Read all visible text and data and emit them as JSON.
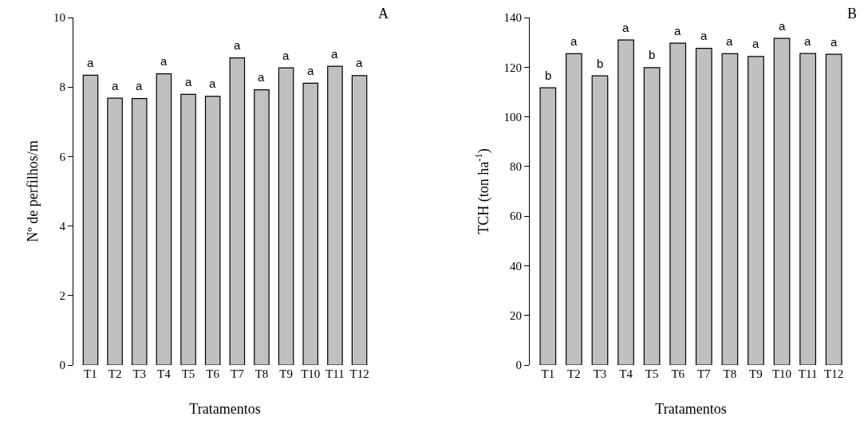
{
  "chart_data": [
    {
      "type": "bar",
      "categories": [
        "T1",
        "T2",
        "T3",
        "T4",
        "T5",
        "T6",
        "T7",
        "T8",
        "T9",
        "T10",
        "T11",
        "T12"
      ],
      "values": [
        8.34,
        7.68,
        7.67,
        8.38,
        7.79,
        7.73,
        8.84,
        7.92,
        8.55,
        8.11,
        8.6,
        8.33
      ],
      "color": "#c0c0c0",
      "xlabel": "Tratamentos",
      "ylabel": "Nº de perfilhos/m",
      "ylim": [
        0,
        10
      ],
      "yticks": [
        0,
        2,
        4,
        6,
        8,
        10
      ],
      "grid": false,
      "legend": false,
      "annotations": [
        "A",
        {
          "text": "a",
          "x": "T1",
          "y": 8.34
        },
        {
          "text": "a",
          "x": "T2",
          "y": 7.68
        },
        {
          "text": "a",
          "x": "T3",
          "y": 7.67
        },
        {
          "text": "a",
          "x": "T4",
          "y": 8.38
        },
        {
          "text": "a",
          "x": "T5",
          "y": 7.79
        },
        {
          "text": "a",
          "x": "T6",
          "y": 7.73
        },
        {
          "text": "a",
          "x": "T7",
          "y": 8.84
        },
        {
          "text": "a",
          "x": "T8",
          "y": 7.92
        },
        {
          "text": "a",
          "x": "T9",
          "y": 8.55
        },
        {
          "text": "a",
          "x": "T10",
          "y": 8.11
        },
        {
          "text": "a",
          "x": "T11",
          "y": 8.6
        },
        {
          "text": "a",
          "x": "T12",
          "y": 8.33
        }
      ]
    },
    {
      "type": "bar",
      "categories": [
        "T1",
        "T2",
        "T3",
        "T4",
        "T5",
        "T6",
        "T7",
        "T8",
        "T9",
        "T10",
        "T11",
        "T12"
      ],
      "values": [
        111.7,
        125.4,
        116.5,
        131.0,
        119.8,
        129.7,
        127.6,
        125.4,
        124.3,
        131.6,
        125.5,
        125.2
      ],
      "color": "#c0c0c0",
      "xlabel": "Tratamentos",
      "ylabel": "TCH (ton ha$^{-1}$)",
      "ylim": [
        0,
        140
      ],
      "yticks": [
        0,
        20,
        40,
        60,
        80,
        100,
        120,
        140
      ],
      "grid": false,
      "legend": false,
      "annotations": [
        "B",
        {
          "text": "b",
          "x": "T1",
          "y": 111.7
        },
        {
          "text": "a",
          "x": "T2",
          "y": 125.4
        },
        {
          "text": "b",
          "x": "T3",
          "y": 116.5
        },
        {
          "text": "a",
          "x": "T4",
          "y": 131.0
        },
        {
          "text": "b",
          "x": "T5",
          "y": 119.8
        },
        {
          "text": "a",
          "x": "T6",
          "y": 129.7
        },
        {
          "text": "a",
          "x": "T7",
          "y": 127.6
        },
        {
          "text": "a",
          "x": "T8",
          "y": 125.4
        },
        {
          "text": "a",
          "x": "T9",
          "y": 124.3
        },
        {
          "text": "a",
          "x": "T10",
          "y": 131.6
        },
        {
          "text": "a",
          "x": "T11",
          "y": 125.5
        },
        {
          "text": "a",
          "x": "T12",
          "y": 125.2
        }
      ]
    }
  ]
}
